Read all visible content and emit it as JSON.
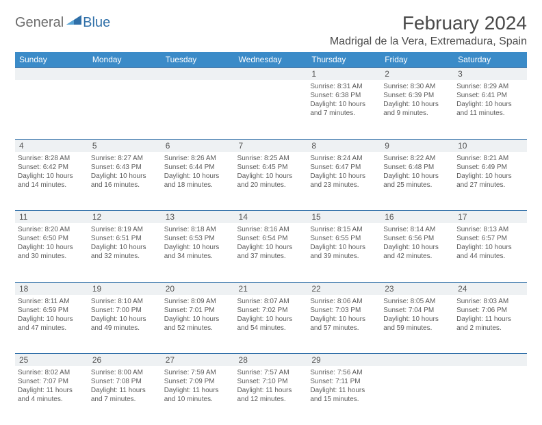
{
  "logo": {
    "general": "General",
    "blue": "Blue"
  },
  "title": "February 2024",
  "location": "Madrigal de la Vera, Extremadura, Spain",
  "day_headers": [
    "Sunday",
    "Monday",
    "Tuesday",
    "Wednesday",
    "Thursday",
    "Friday",
    "Saturday"
  ],
  "colors": {
    "header_bg": "#3b8bc8",
    "rule": "#2f6fa8",
    "daynum_bg": "#eef1f3",
    "text": "#5a5a5a"
  },
  "weeks": [
    [
      null,
      null,
      null,
      null,
      {
        "n": "1",
        "sunrise": "Sunrise: 8:31 AM",
        "sunset": "Sunset: 6:38 PM",
        "dl1": "Daylight: 10 hours",
        "dl2": "and 7 minutes."
      },
      {
        "n": "2",
        "sunrise": "Sunrise: 8:30 AM",
        "sunset": "Sunset: 6:39 PM",
        "dl1": "Daylight: 10 hours",
        "dl2": "and 9 minutes."
      },
      {
        "n": "3",
        "sunrise": "Sunrise: 8:29 AM",
        "sunset": "Sunset: 6:41 PM",
        "dl1": "Daylight: 10 hours",
        "dl2": "and 11 minutes."
      }
    ],
    [
      {
        "n": "4",
        "sunrise": "Sunrise: 8:28 AM",
        "sunset": "Sunset: 6:42 PM",
        "dl1": "Daylight: 10 hours",
        "dl2": "and 14 minutes."
      },
      {
        "n": "5",
        "sunrise": "Sunrise: 8:27 AM",
        "sunset": "Sunset: 6:43 PM",
        "dl1": "Daylight: 10 hours",
        "dl2": "and 16 minutes."
      },
      {
        "n": "6",
        "sunrise": "Sunrise: 8:26 AM",
        "sunset": "Sunset: 6:44 PM",
        "dl1": "Daylight: 10 hours",
        "dl2": "and 18 minutes."
      },
      {
        "n": "7",
        "sunrise": "Sunrise: 8:25 AM",
        "sunset": "Sunset: 6:45 PM",
        "dl1": "Daylight: 10 hours",
        "dl2": "and 20 minutes."
      },
      {
        "n": "8",
        "sunrise": "Sunrise: 8:24 AM",
        "sunset": "Sunset: 6:47 PM",
        "dl1": "Daylight: 10 hours",
        "dl2": "and 23 minutes."
      },
      {
        "n": "9",
        "sunrise": "Sunrise: 8:22 AM",
        "sunset": "Sunset: 6:48 PM",
        "dl1": "Daylight: 10 hours",
        "dl2": "and 25 minutes."
      },
      {
        "n": "10",
        "sunrise": "Sunrise: 8:21 AM",
        "sunset": "Sunset: 6:49 PM",
        "dl1": "Daylight: 10 hours",
        "dl2": "and 27 minutes."
      }
    ],
    [
      {
        "n": "11",
        "sunrise": "Sunrise: 8:20 AM",
        "sunset": "Sunset: 6:50 PM",
        "dl1": "Daylight: 10 hours",
        "dl2": "and 30 minutes."
      },
      {
        "n": "12",
        "sunrise": "Sunrise: 8:19 AM",
        "sunset": "Sunset: 6:51 PM",
        "dl1": "Daylight: 10 hours",
        "dl2": "and 32 minutes."
      },
      {
        "n": "13",
        "sunrise": "Sunrise: 8:18 AM",
        "sunset": "Sunset: 6:53 PM",
        "dl1": "Daylight: 10 hours",
        "dl2": "and 34 minutes."
      },
      {
        "n": "14",
        "sunrise": "Sunrise: 8:16 AM",
        "sunset": "Sunset: 6:54 PM",
        "dl1": "Daylight: 10 hours",
        "dl2": "and 37 minutes."
      },
      {
        "n": "15",
        "sunrise": "Sunrise: 8:15 AM",
        "sunset": "Sunset: 6:55 PM",
        "dl1": "Daylight: 10 hours",
        "dl2": "and 39 minutes."
      },
      {
        "n": "16",
        "sunrise": "Sunrise: 8:14 AM",
        "sunset": "Sunset: 6:56 PM",
        "dl1": "Daylight: 10 hours",
        "dl2": "and 42 minutes."
      },
      {
        "n": "17",
        "sunrise": "Sunrise: 8:13 AM",
        "sunset": "Sunset: 6:57 PM",
        "dl1": "Daylight: 10 hours",
        "dl2": "and 44 minutes."
      }
    ],
    [
      {
        "n": "18",
        "sunrise": "Sunrise: 8:11 AM",
        "sunset": "Sunset: 6:59 PM",
        "dl1": "Daylight: 10 hours",
        "dl2": "and 47 minutes."
      },
      {
        "n": "19",
        "sunrise": "Sunrise: 8:10 AM",
        "sunset": "Sunset: 7:00 PM",
        "dl1": "Daylight: 10 hours",
        "dl2": "and 49 minutes."
      },
      {
        "n": "20",
        "sunrise": "Sunrise: 8:09 AM",
        "sunset": "Sunset: 7:01 PM",
        "dl1": "Daylight: 10 hours",
        "dl2": "and 52 minutes."
      },
      {
        "n": "21",
        "sunrise": "Sunrise: 8:07 AM",
        "sunset": "Sunset: 7:02 PM",
        "dl1": "Daylight: 10 hours",
        "dl2": "and 54 minutes."
      },
      {
        "n": "22",
        "sunrise": "Sunrise: 8:06 AM",
        "sunset": "Sunset: 7:03 PM",
        "dl1": "Daylight: 10 hours",
        "dl2": "and 57 minutes."
      },
      {
        "n": "23",
        "sunrise": "Sunrise: 8:05 AM",
        "sunset": "Sunset: 7:04 PM",
        "dl1": "Daylight: 10 hours",
        "dl2": "and 59 minutes."
      },
      {
        "n": "24",
        "sunrise": "Sunrise: 8:03 AM",
        "sunset": "Sunset: 7:06 PM",
        "dl1": "Daylight: 11 hours",
        "dl2": "and 2 minutes."
      }
    ],
    [
      {
        "n": "25",
        "sunrise": "Sunrise: 8:02 AM",
        "sunset": "Sunset: 7:07 PM",
        "dl1": "Daylight: 11 hours",
        "dl2": "and 4 minutes."
      },
      {
        "n": "26",
        "sunrise": "Sunrise: 8:00 AM",
        "sunset": "Sunset: 7:08 PM",
        "dl1": "Daylight: 11 hours",
        "dl2": "and 7 minutes."
      },
      {
        "n": "27",
        "sunrise": "Sunrise: 7:59 AM",
        "sunset": "Sunset: 7:09 PM",
        "dl1": "Daylight: 11 hours",
        "dl2": "and 10 minutes."
      },
      {
        "n": "28",
        "sunrise": "Sunrise: 7:57 AM",
        "sunset": "Sunset: 7:10 PM",
        "dl1": "Daylight: 11 hours",
        "dl2": "and 12 minutes."
      },
      {
        "n": "29",
        "sunrise": "Sunrise: 7:56 AM",
        "sunset": "Sunset: 7:11 PM",
        "dl1": "Daylight: 11 hours",
        "dl2": "and 15 minutes."
      },
      null,
      null
    ]
  ]
}
